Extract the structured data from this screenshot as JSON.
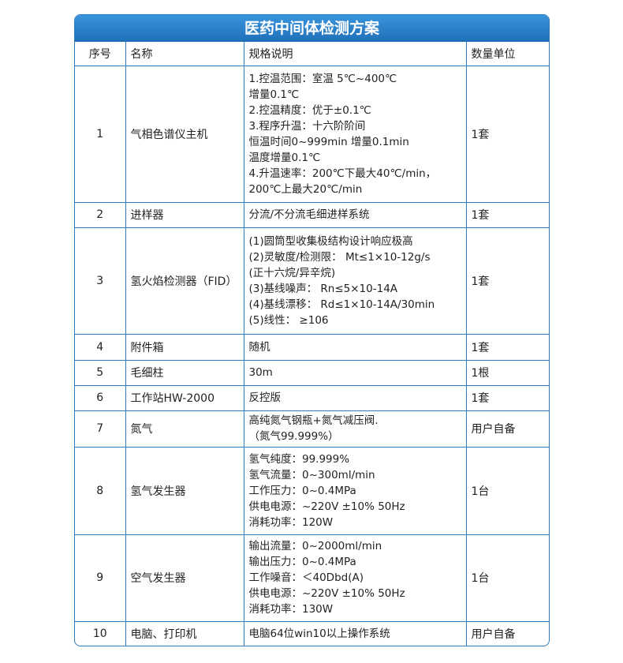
{
  "header": {
    "title": "医药中间体检测方案"
  },
  "table": {
    "columns": [
      "序号",
      "名称",
      "规格说明",
      "数量单位"
    ],
    "rows": [
      [
        "1",
        "气相色谱仪主机",
        [
          "1.控温范围：室温 5℃~400℃",
          "增量0.1℃",
          "2.控温精度：优于±0.1℃",
          "3.程序升温：十六阶阶间",
          "恒温时间0~999min 增量0.1min",
          "温度增量0.1℃",
          "4.升温速率：200℃下最大40℃/min，",
          "200℃上最大20℃/min"
        ],
        "1套"
      ],
      [
        "2",
        "进样器",
        [
          "分流/不分流毛细进样系统"
        ],
        "1套"
      ],
      [
        "3",
        "氢火焰检测器（FID）",
        [
          "(1)圆筒型收集极结构设计响应极高",
          "(2)灵敏度/检测限： Mt≤1×10-12g/s",
          "(正十六烷/异辛烷)",
          "(3)基线噪声： Rn≤5×10-14A",
          "(4)基线漂移： Rd≤1×10-14A/30min",
          "(5)线性： ≥106"
        ],
        "1套"
      ],
      [
        "4",
        "附件箱",
        [
          "随机"
        ],
        "1套"
      ],
      [
        "5",
        "毛细柱",
        [
          "30m"
        ],
        "1根"
      ],
      [
        "6",
        "工作站HW-2000",
        [
          "反控版"
        ],
        "1套"
      ],
      [
        "7",
        "氮气",
        [
          "高纯氮气钢瓶+氮气减压阀.",
          "（氮气99.999%）"
        ],
        "用户自备"
      ],
      [
        "8",
        "氢气发生器",
        [
          "氢气纯度：99.999%",
          "氢气流量：0~300ml/min",
          "工作压力：0~0.4MPa",
          "供电电源：~220V ±10% 50Hz",
          "消耗功率：120W"
        ],
        "1台"
      ],
      [
        "9",
        "空气发生器",
        [
          "输出流量：0~2000ml/min",
          "输出压力：0~0.4MPa",
          "工作噪音：＜40Dbd(A)",
          "供电电源：~220V ±10% 50Hz",
          "消耗功率：130W"
        ],
        "1台"
      ],
      [
        "10",
        "电脑、打印机",
        [
          "电脑64位win10以上操作系统"
        ],
        "用户自备"
      ]
    ]
  }
}
